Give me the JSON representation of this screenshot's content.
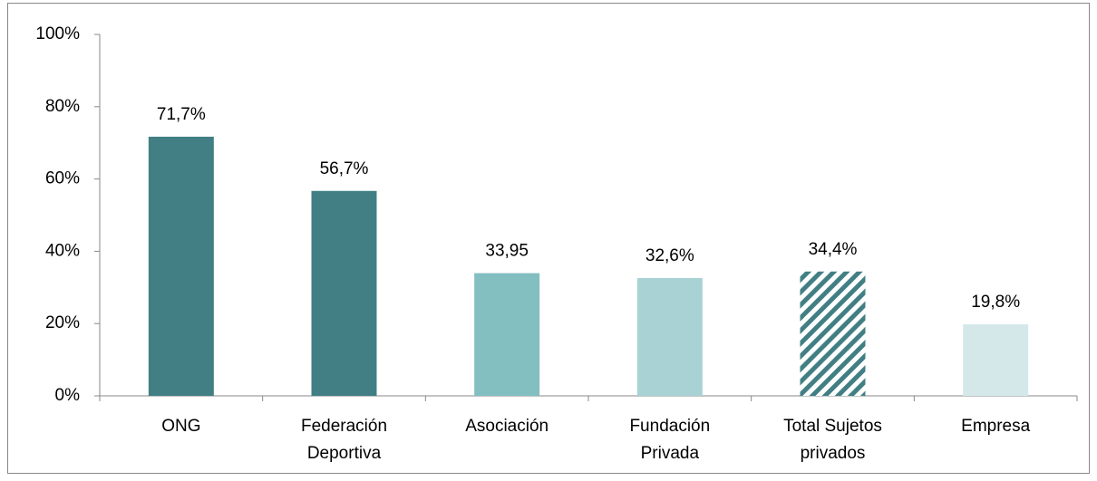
{
  "chart_data": {
    "type": "bar",
    "categories": [
      "ONG",
      "Federación Deportiva",
      "Asociación",
      "Fundación Privada",
      "Total Sujetos privados",
      "Empresa"
    ],
    "values": [
      71.7,
      56.7,
      33.95,
      32.6,
      34.4,
      19.8
    ],
    "value_labels": [
      "71,7%",
      "56,7%",
      "33,95",
      "32,6%",
      "34,4%",
      "19,8%"
    ],
    "colors": [
      "#417f84",
      "#417f84",
      "#83bec1",
      "#a9d2d4",
      "#417f84",
      "#d4e8ea"
    ],
    "hatched": [
      false,
      false,
      false,
      false,
      true,
      false
    ],
    "ylim": [
      0,
      100
    ],
    "yticks": [
      {
        "value": 0,
        "label": "0%"
      },
      {
        "value": 20,
        "label": "20%"
      },
      {
        "value": 40,
        "label": "40%"
      },
      {
        "value": 60,
        "label": "60%"
      },
      {
        "value": 80,
        "label": "80%"
      },
      {
        "value": 100,
        "label": "100%"
      }
    ],
    "grid": false
  }
}
